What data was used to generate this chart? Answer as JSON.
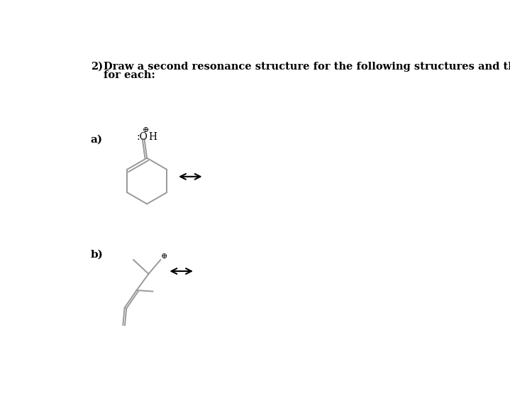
{
  "title_number": "2)",
  "title_text": "Draw a second resonance structure for the following structures and then an overall resonance hybrid",
  "title_text2": "for each:",
  "title_fontsize": 10.5,
  "label_a": "a)",
  "label_b": "b)",
  "label_fontsize": 11,
  "bg_color": "#ffffff",
  "line_color": "#000000",
  "bond_color": "#999999",
  "line_width": 1.4
}
